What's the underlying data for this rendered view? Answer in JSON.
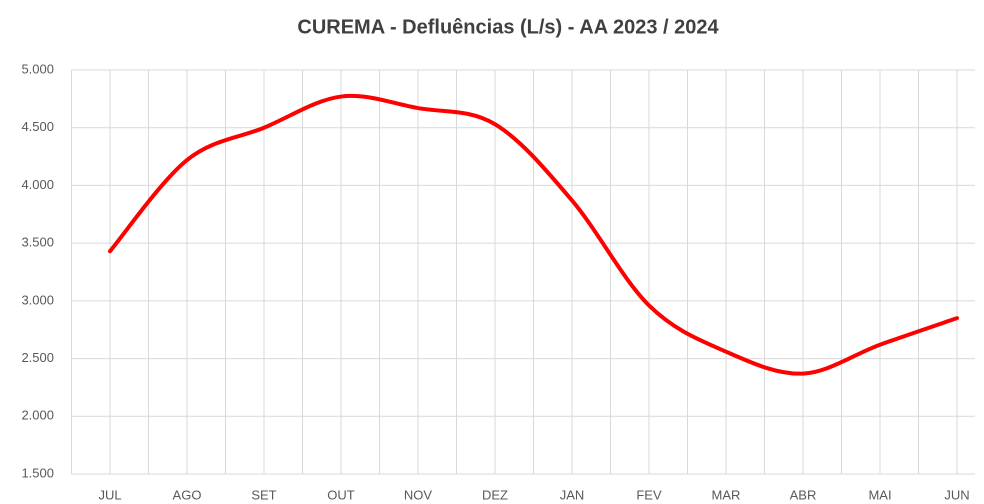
{
  "chart_data": {
    "type": "line",
    "title": "CUREMA - Defluências (L/s) - AA 2023 / 2024",
    "categories": [
      "JUL",
      "AGO",
      "SET",
      "OUT",
      "NOV",
      "DEZ",
      "JAN",
      "FEV",
      "MAR",
      "ABR",
      "MAI",
      "JUN"
    ],
    "series": [
      {
        "name": "Defluências",
        "color": "#ff0000",
        "values": [
          3430,
          4220,
          4500,
          4770,
          4670,
          4530,
          3870,
          2960,
          2560,
          2370,
          2620,
          2850
        ]
      }
    ],
    "ylim": [
      1500,
      5000
    ],
    "yticks": [
      {
        "value": 1500,
        "label": "1.500"
      },
      {
        "value": 2000,
        "label": "2.000"
      },
      {
        "value": 2500,
        "label": "2.500"
      },
      {
        "value": 3000,
        "label": "3.000"
      },
      {
        "value": 3500,
        "label": "3.500"
      },
      {
        "value": 4000,
        "label": "4.000"
      },
      {
        "value": 4500,
        "label": "4.500"
      },
      {
        "value": 5000,
        "label": "5.000"
      }
    ],
    "grid": true
  }
}
